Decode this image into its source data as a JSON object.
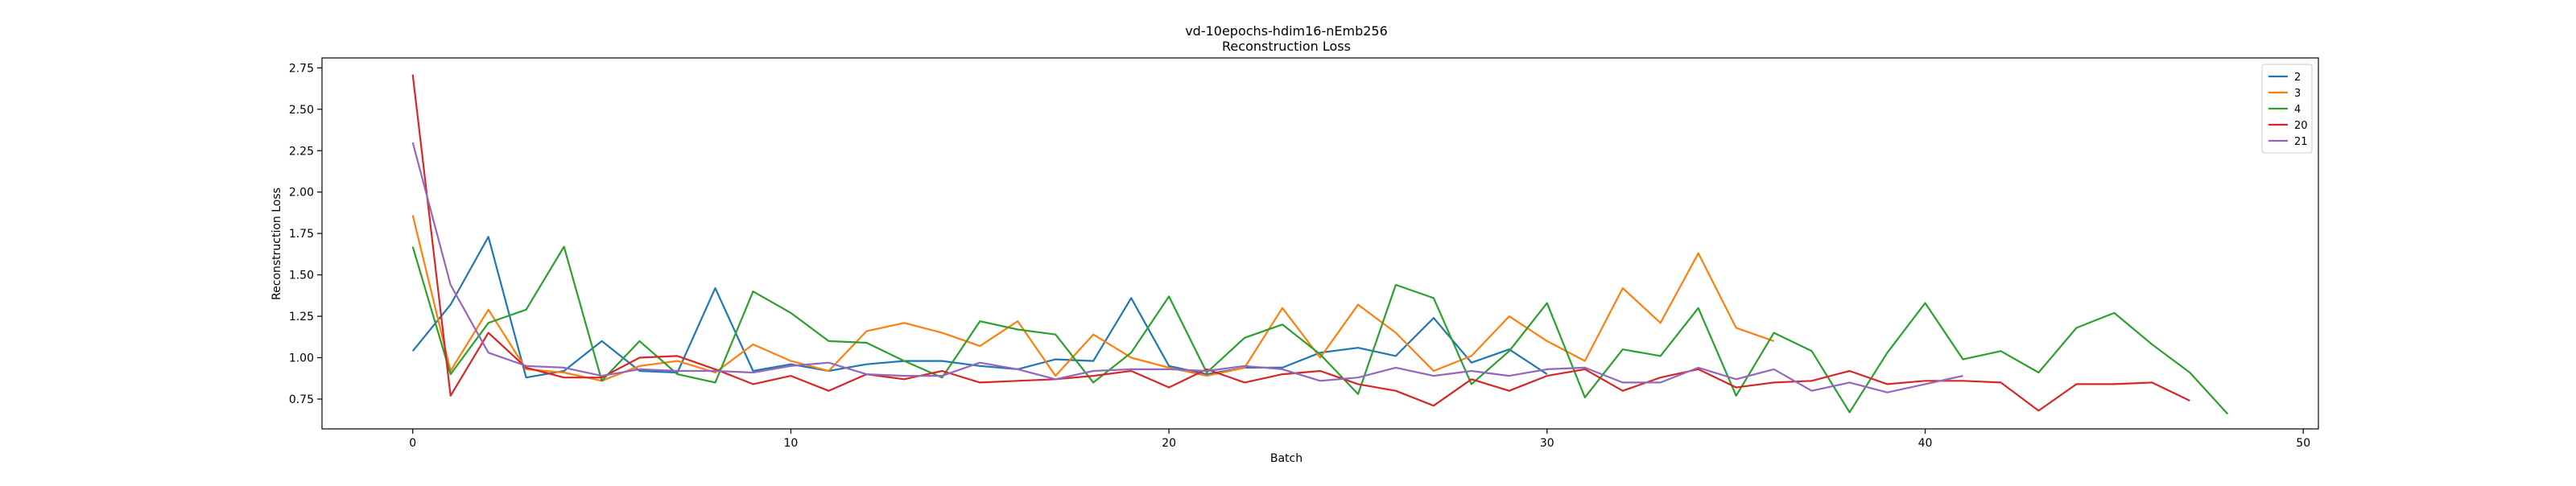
{
  "chart_data": {
    "type": "line",
    "title": "vd-10epochs-hdim16-nEmb256",
    "subtitle": "Reconstruction Loss",
    "xlabel": "Batch",
    "ylabel": "Reconstruction Loss",
    "xlim": [
      -2.4,
      50.4
    ],
    "ylim": [
      0.57,
      2.81
    ],
    "xticks": [
      0,
      10,
      20,
      30,
      40,
      50
    ],
    "yticks": [
      0.75,
      1.0,
      1.25,
      1.5,
      1.75,
      2.0,
      2.25,
      2.5,
      2.75
    ],
    "ytick_labels": [
      "0.75",
      "1.00",
      "1.25",
      "1.50",
      "1.75",
      "2.00",
      "2.25",
      "2.50",
      "2.75"
    ],
    "grid": false,
    "legend_position": "top-right",
    "series": [
      {
        "name": "2",
        "color": "#1f77b4",
        "values": [
          1.04,
          1.32,
          1.73,
          0.88,
          0.92,
          1.1,
          0.92,
          0.91,
          1.42,
          0.92,
          0.96,
          0.92,
          0.96,
          0.98,
          0.98,
          0.95,
          0.93,
          0.99,
          0.98,
          1.36,
          0.95,
          0.9,
          0.94,
          0.94,
          1.03,
          1.06,
          1.01,
          1.24,
          0.97,
          1.05,
          0.9
        ]
      },
      {
        "name": "3",
        "color": "#ff7f0e",
        "values": [
          1.86,
          0.92,
          1.29,
          0.93,
          0.91,
          0.86,
          0.95,
          0.98,
          0.91,
          1.08,
          0.98,
          0.92,
          1.16,
          1.21,
          1.15,
          1.07,
          1.22,
          0.89,
          1.14,
          1.0,
          0.94,
          0.89,
          0.94,
          1.3,
          1.0,
          1.32,
          1.15,
          0.92,
          1.01,
          1.25,
          1.1,
          0.98,
          1.42,
          1.21,
          1.63,
          1.18,
          1.1
        ]
      },
      {
        "name": "4",
        "color": "#2ca02c",
        "values": [
          1.67,
          0.9,
          1.21,
          1.29,
          1.67,
          0.86,
          1.1,
          0.9,
          0.85,
          1.4,
          1.27,
          1.1,
          1.09,
          0.98,
          0.88,
          1.22,
          1.17,
          1.14,
          0.85,
          1.03,
          1.37,
          0.91,
          1.12,
          1.2,
          1.02,
          0.78,
          1.44,
          1.36,
          0.84,
          1.04,
          1.33,
          0.76,
          1.05,
          1.01,
          1.3,
          0.77,
          1.15,
          1.04,
          0.67,
          1.03,
          1.33,
          0.99,
          1.04,
          0.91,
          1.18,
          1.27,
          1.08,
          0.91,
          0.66
        ]
      },
      {
        "name": "20",
        "color": "#d62728",
        "values": [
          2.71,
          0.77,
          1.15,
          0.94,
          0.88,
          0.88,
          1.0,
          1.01,
          0.93,
          0.84,
          0.89,
          0.8,
          0.9,
          0.87,
          0.92,
          0.85,
          0.86,
          0.87,
          0.89,
          0.92,
          0.82,
          0.93,
          0.85,
          0.9,
          0.92,
          0.84,
          0.8,
          0.71,
          0.87,
          0.8,
          0.89,
          0.93,
          0.8,
          0.88,
          0.93,
          0.82,
          0.85,
          0.86,
          0.92,
          0.84,
          0.86,
          0.86,
          0.85,
          0.68,
          0.84,
          0.84,
          0.85,
          0.74
        ]
      },
      {
        "name": "21",
        "color": "#9467bd",
        "values": [
          2.3,
          1.44,
          1.03,
          0.95,
          0.94,
          0.89,
          0.93,
          0.92,
          0.92,
          0.91,
          0.95,
          0.97,
          0.9,
          0.89,
          0.89,
          0.97,
          0.93,
          0.87,
          0.92,
          0.93,
          0.93,
          0.92,
          0.95,
          0.93,
          0.86,
          0.88,
          0.94,
          0.89,
          0.92,
          0.89,
          0.93,
          0.94,
          0.85,
          0.85,
          0.94,
          0.87,
          0.93,
          0.8,
          0.85,
          0.79,
          0.84,
          0.89
        ]
      }
    ]
  }
}
